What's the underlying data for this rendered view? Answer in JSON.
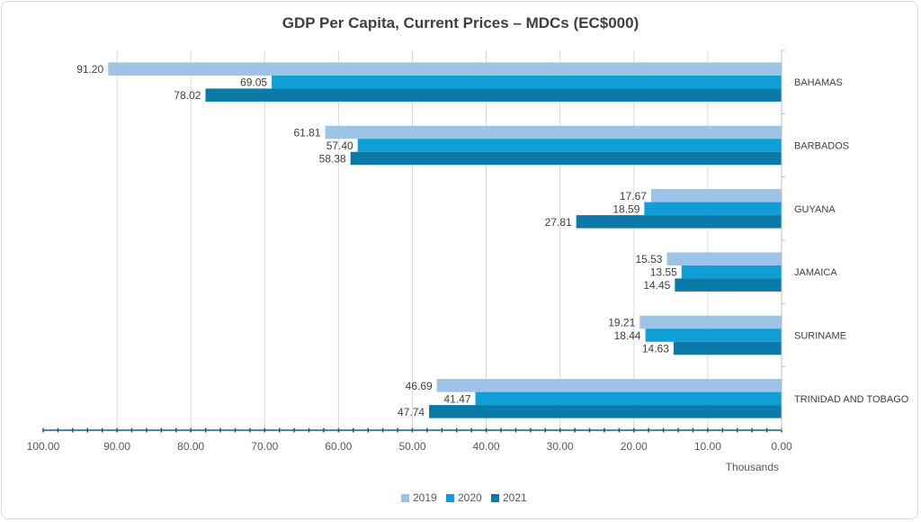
{
  "chart_data": {
    "type": "bar",
    "orientation": "horizontal",
    "x_axis_reversed": true,
    "title": "GDP Per Capita, Current Prices – MDCs (EC$000)",
    "xlabel": "Thousands",
    "xlim": [
      0,
      100
    ],
    "x_ticks": [
      "100.00",
      "90.00",
      "80.00",
      "70.00",
      "60.00",
      "50.00",
      "40.00",
      "30.00",
      "20.00",
      "10.00",
      "0.00"
    ],
    "categories": [
      "BAHAMAS",
      "BARBADOS",
      "GUYANA",
      "JAMAICA",
      "SURINAME",
      "TRINIDAD AND TOBAGO"
    ],
    "series": [
      {
        "name": "2019",
        "color": "#9dc3e6",
        "values": [
          91.2,
          61.81,
          17.67,
          15.53,
          19.21,
          46.69
        ]
      },
      {
        "name": "2020",
        "color": "#0f9ed5",
        "values": [
          69.05,
          57.4,
          18.59,
          13.55,
          18.44,
          41.47
        ]
      },
      {
        "name": "2021",
        "color": "#0b7aa8",
        "values": [
          78.02,
          58.38,
          27.81,
          14.45,
          14.63,
          47.74
        ]
      }
    ],
    "grid": true,
    "legend_position": "bottom"
  }
}
